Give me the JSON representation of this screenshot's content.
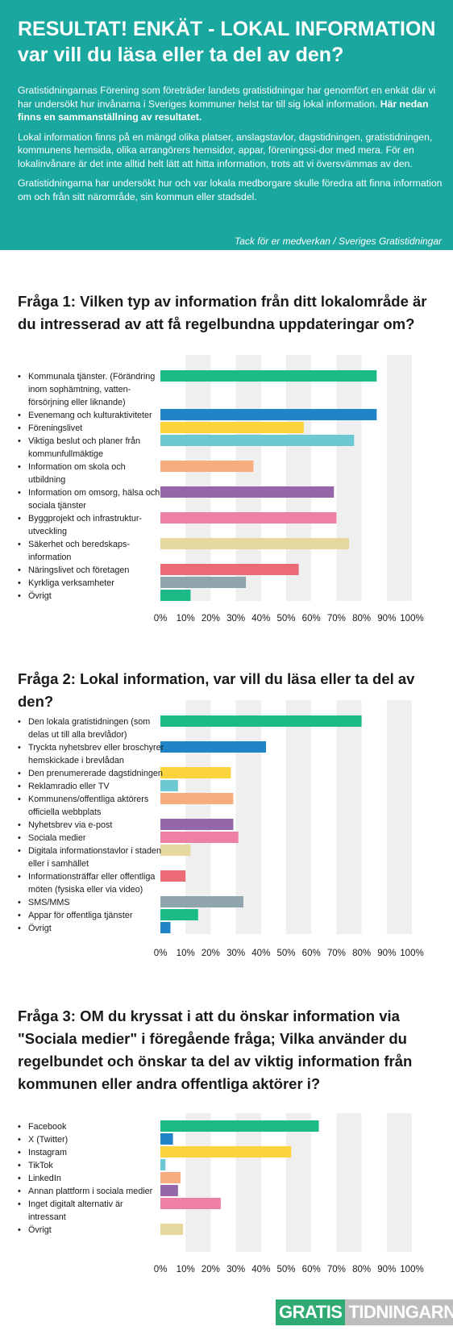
{
  "header": {
    "title_line1": "RESULTAT! ENKÄT - LOKAL INFORMATION",
    "title_line2": "var vill du läsa eller ta del av den?",
    "intro1": "Gratistidningarnas Förening som företräder landets gratistidningar har genomfört en enkät där vi har undersökt hur invånarna i Sveriges kommuner helst tar till sig lokal information. ",
    "intro1_bold": "Här nedan finns en sammanställning av resultatet.",
    "intro2": "Lokal information finns på en mängd olika platser, anslagstavlor, dagstidningen, gratistidningen, kommunens hemsida, olika arrangörers hemsidor, appar, föreningssi-dor med mera. För en lokalinvånare är det inte alltid helt lätt att hitta information, trots att vi översvämmas av den.",
    "intro3": "Gratistidningarna har undersökt hur och var lokala medborgare skulle föredra att finna information om och från sitt närområde, sin kommun eller stadsdel.",
    "thanks": "Tack för er medverkan / Sveriges Gratistidningar"
  },
  "questions": {
    "q1": "Fråga 1: Vilken typ av information från ditt lokalområde är du intresserad av att få regelbundna uppdateringar om?",
    "q2": "Fråga 2: Lokal information, var vill du läsa eller ta del av den?",
    "q3": "Fråga 3: OM du kryssat i att du önskar information via \"Sociala medier\" i föregående fråga; Vilka använder du regelbundet och önskar ta del av viktig information från kommunen eller andra offentliga aktörer i?"
  },
  "footer": {
    "logo_part1": "GRATIS",
    "logo_part2": "TIDNINGARNA"
  },
  "chart_data": [
    {
      "type": "bar",
      "orientation": "horizontal",
      "xlim": [
        0,
        100
      ],
      "ticks": [
        "0%",
        "10%",
        "20%",
        "30%",
        "40%",
        "50%",
        "60%",
        "70%",
        "80%",
        "90%",
        "100%"
      ],
      "categories": [
        [
          "Kommunala tjänster. (Förändring",
          "inom sophämtning, vatten-",
          "försörjning eller liknande)"
        ],
        [
          "Evenemang och kulturaktiviteter"
        ],
        [
          "Föreningslivet"
        ],
        [
          "Viktiga beslut och planer från",
          "kommunfullmäktige"
        ],
        [
          "Information om skola och",
          "utbildning"
        ],
        [
          "Information om omsorg, hälsa och",
          "sociala tjänster"
        ],
        [
          "Byggprojekt och infrastruktur-",
          "utveckling"
        ],
        [
          "Säkerhet och beredskaps-",
          "information"
        ],
        [
          "Näringslivet och företagen"
        ],
        [
          "Kyrkliga verksamheter"
        ],
        [
          "Övrigt"
        ]
      ],
      "values": [
        86,
        86,
        57,
        77,
        37,
        69,
        70,
        75,
        55,
        34,
        12
      ],
      "colors": [
        "#1cba87",
        "#2084c9",
        "#fbd43c",
        "#6cc9d3",
        "#f8ad80",
        "#9566a9",
        "#ef80a5",
        "#e5d89e",
        "#ec6a75",
        "#90a4ae",
        "#1cba87"
      ]
    },
    {
      "type": "bar",
      "orientation": "horizontal",
      "xlim": [
        0,
        100
      ],
      "ticks": [
        "0%",
        "10%",
        "20%",
        "30%",
        "40%",
        "50%",
        "60%",
        "70%",
        "80%",
        "90%",
        "100%"
      ],
      "categories": [
        [
          "Den lokala gratistidningen (som",
          "delas ut till alla brevlådor)"
        ],
        [
          "Tryckta nyhetsbrev eller broschyrer",
          "hemskickade i brevlådan"
        ],
        [
          "Den prenumererade dagstidningen"
        ],
        [
          "Reklamradio eller TV"
        ],
        [
          "Kommunens/offentliga aktörers",
          "officiella webbplats"
        ],
        [
          "Nyhetsbrev via e-post"
        ],
        [
          "Sociala medier"
        ],
        [
          "Digitala informationstavlor i staden",
          "eller i samhället"
        ],
        [
          "Informationsträffar eller offentliga",
          "möten (fysiska eller via video)"
        ],
        [
          "SMS/MMS"
        ],
        [
          "Appar för offentliga tjänster"
        ],
        [
          "Övrigt"
        ]
      ],
      "values": [
        80,
        42,
        28,
        7,
        29,
        29,
        31,
        12,
        10,
        33,
        15,
        4
      ],
      "colors": [
        "#1cba87",
        "#2084c9",
        "#fbd43c",
        "#6cc9d3",
        "#f8ad80",
        "#9566a9",
        "#ef80a5",
        "#e5d89e",
        "#ec6a75",
        "#90a4ae",
        "#1cba87",
        "#2084c9"
      ]
    },
    {
      "type": "bar",
      "orientation": "horizontal",
      "xlim": [
        0,
        100
      ],
      "ticks": [
        "0%",
        "10%",
        "20%",
        "30%",
        "40%",
        "50%",
        "60%",
        "70%",
        "80%",
        "90%",
        "100%"
      ],
      "categories": [
        [
          "Facebook"
        ],
        [
          "X (Twitter)"
        ],
        [
          "Instagram"
        ],
        [
          "TikTok"
        ],
        [
          "LinkedIn"
        ],
        [
          "Annan plattform i sociala medier"
        ],
        [
          "Inget digitalt alternativ är",
          "intressant"
        ],
        [
          "Övrigt"
        ]
      ],
      "values": [
        63,
        5,
        52,
        2,
        8,
        7,
        24,
        9
      ],
      "colors": [
        "#1cba87",
        "#2084c9",
        "#fbd43c",
        "#6cc9d3",
        "#f8ad80",
        "#9566a9",
        "#ef80a5",
        "#e5d89e"
      ]
    }
  ]
}
